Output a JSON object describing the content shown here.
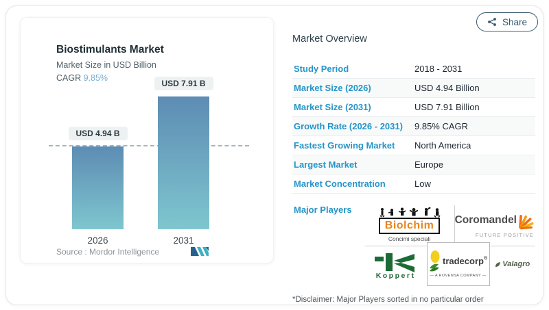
{
  "share": {
    "label": "Share"
  },
  "chart": {
    "title": "Biostimulants Market",
    "subtitle": "Market Size in USD Billion",
    "cagr_label": "CAGR ",
    "cagr_value": "9.85%",
    "source": "Source :  Mordor Intelligence"
  },
  "chart_data": {
    "type": "bar",
    "title": "Biostimulants Market",
    "ylabel": "Market Size in USD Billion",
    "categories": [
      "2026",
      "2031"
    ],
    "values": [
      4.94,
      7.91
    ],
    "data_labels": [
      "USD 4.94 B",
      "USD 7.91 B"
    ],
    "reference_line": 4.94,
    "ylim": [
      0,
      8.5
    ],
    "grid": false,
    "legend": "none",
    "bar_gradient_top": "#5d8cb3",
    "bar_gradient_bottom": "#7ec6cf"
  },
  "overview": {
    "heading": "Market Overview",
    "rows": [
      {
        "label": "Study Period",
        "value": "2018 - 2031"
      },
      {
        "label": "Market Size (2026)",
        "value": "USD 4.94 Billion"
      },
      {
        "label": "Market Size (2031)",
        "value": "USD 7.91 Billion"
      },
      {
        "label": "Growth Rate (2026 - 2031)",
        "value": "9.85% CAGR"
      },
      {
        "label": "Fastest Growing Market",
        "value": "North America"
      },
      {
        "label": "Largest Market",
        "value": "Europe"
      },
      {
        "label": "Market Concentration",
        "value": "Low"
      }
    ],
    "major_players_label": "Major Players",
    "players": {
      "biolchim": {
        "name": "Biolchim",
        "tagline": "Concimi speciali"
      },
      "coromandel": {
        "name": "Coromandel",
        "tagline": "FUTURE POSITIVE"
      },
      "koppert": {
        "name": "Koppert"
      },
      "tradecorp": {
        "name": "tradecorp",
        "reg": "®",
        "tagline": "— A ROVENSA COMPANY —"
      },
      "valagro": {
        "name": "Valagro"
      }
    },
    "disclaimer": "*Disclaimer: Major Players sorted in no particular order"
  },
  "colors": {
    "accent_blue": "#2595c8",
    "cagr_blue": "#79add2",
    "share_blue": "#35586d",
    "bar_top": "#5d8cb3",
    "bar_bottom": "#7ec6cf",
    "dashed_line": "#a3b6c2",
    "biolchim_orange": "#e8861c",
    "coromandel_orange": "#ef7d17",
    "koppert_green": "#1c6b35",
    "tradecorp_yellow": "#f2cf1c",
    "valagro_green": "#55624d"
  }
}
